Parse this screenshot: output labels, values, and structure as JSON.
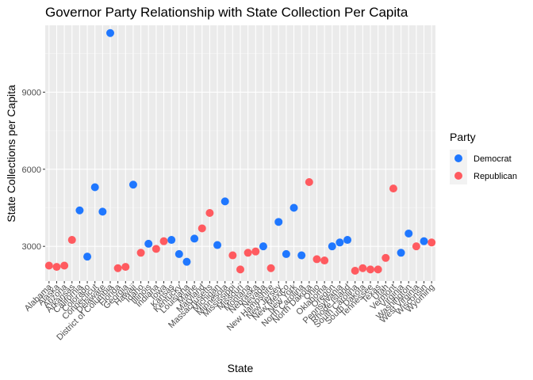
{
  "chart_data": {
    "type": "scatter",
    "title": "Governor Party Relationship with State Collection Per Capita",
    "xlabel": "State",
    "ylabel": "State Collections per Capita",
    "ylim": [
      1650,
      11600
    ],
    "yticks": [
      3000,
      6000,
      9000
    ],
    "grid": true,
    "legend": {
      "title": "Party",
      "position": "right",
      "entries": [
        {
          "name": "Democrat",
          "color": "#1F77FF"
        },
        {
          "name": "Republican",
          "color": "#FF5A5F"
        }
      ]
    },
    "categories": [
      "Alabama",
      "Alaska",
      "Arizona",
      "Arkansas",
      "California",
      "Colorado",
      "Connecticut",
      "Delaware",
      "District of Columbia",
      "Florida",
      "Georgia",
      "Hawaii",
      "Idaho",
      "Illinois",
      "Indiana",
      "Iowa",
      "Kansas",
      "Kentucky",
      "Louisiana",
      "Maine",
      "Maryland",
      "Massachusetts",
      "Michigan",
      "Minnesota",
      "Mississippi",
      "Missouri",
      "Montana",
      "Nebraska",
      "Nevada",
      "New Hampshire",
      "New Jersey",
      "New Mexico",
      "New York",
      "North Carolina",
      "North Dakota",
      "Ohio",
      "Oklahoma",
      "Oregon",
      "Pennsylvania",
      "Rhode Island",
      "South Carolina",
      "South Dakota",
      "Tennessee",
      "Texas",
      "Utah",
      "Vermont",
      "Virginia",
      "Washington",
      "West Virginia",
      "Wisconsin",
      "Wyoming"
    ],
    "points": [
      {
        "state": "Alabama",
        "value": 2250,
        "party": "Republican"
      },
      {
        "state": "Alaska",
        "value": 2200,
        "party": "Republican"
      },
      {
        "state": "Arizona",
        "value": 2250,
        "party": "Republican"
      },
      {
        "state": "Arkansas",
        "value": 3250,
        "party": "Republican"
      },
      {
        "state": "California",
        "value": 4400,
        "party": "Democrat"
      },
      {
        "state": "Colorado",
        "value": 2600,
        "party": "Democrat"
      },
      {
        "state": "Connecticut",
        "value": 5300,
        "party": "Democrat"
      },
      {
        "state": "Delaware",
        "value": 4350,
        "party": "Democrat"
      },
      {
        "state": "District of Columbia",
        "value": 11300,
        "party": "Democrat"
      },
      {
        "state": "Florida",
        "value": 2150,
        "party": "Republican"
      },
      {
        "state": "Georgia",
        "value": 2200,
        "party": "Republican"
      },
      {
        "state": "Hawaii",
        "value": 5400,
        "party": "Democrat"
      },
      {
        "state": "Idaho",
        "value": 2750,
        "party": "Republican"
      },
      {
        "state": "Illinois",
        "value": 3100,
        "party": "Democrat"
      },
      {
        "state": "Indiana",
        "value": 2900,
        "party": "Republican"
      },
      {
        "state": "Iowa",
        "value": 3200,
        "party": "Republican"
      },
      {
        "state": "Kansas",
        "value": 3250,
        "party": "Democrat"
      },
      {
        "state": "Kentucky",
        "value": 2700,
        "party": "Democrat"
      },
      {
        "state": "Louisiana",
        "value": 2400,
        "party": "Democrat"
      },
      {
        "state": "Maine",
        "value": 3300,
        "party": "Democrat"
      },
      {
        "state": "Maryland",
        "value": 3700,
        "party": "Republican"
      },
      {
        "state": "Massachusetts",
        "value": 4300,
        "party": "Republican"
      },
      {
        "state": "Michigan",
        "value": 3050,
        "party": "Democrat"
      },
      {
        "state": "Minnesota",
        "value": 4750,
        "party": "Democrat"
      },
      {
        "state": "Mississippi",
        "value": 2650,
        "party": "Republican"
      },
      {
        "state": "Missouri",
        "value": 2100,
        "party": "Republican"
      },
      {
        "state": "Montana",
        "value": 2750,
        "party": "Republican"
      },
      {
        "state": "Nebraska",
        "value": 2800,
        "party": "Republican"
      },
      {
        "state": "Nevada",
        "value": 3000,
        "party": "Democrat"
      },
      {
        "state": "New Hampshire",
        "value": 2150,
        "party": "Republican"
      },
      {
        "state": "New Jersey",
        "value": 3950,
        "party": "Democrat"
      },
      {
        "state": "New Mexico",
        "value": 2700,
        "party": "Democrat"
      },
      {
        "state": "New York",
        "value": 4500,
        "party": "Democrat"
      },
      {
        "state": "North Carolina",
        "value": 2650,
        "party": "Democrat"
      },
      {
        "state": "North Dakota",
        "value": 5500,
        "party": "Republican"
      },
      {
        "state": "Ohio",
        "value": 2500,
        "party": "Republican"
      },
      {
        "state": "Oklahoma",
        "value": 2450,
        "party": "Republican"
      },
      {
        "state": "Oregon",
        "value": 3000,
        "party": "Democrat"
      },
      {
        "state": "Pennsylvania",
        "value": 3150,
        "party": "Democrat"
      },
      {
        "state": "Rhode Island",
        "value": 3250,
        "party": "Democrat"
      },
      {
        "state": "South Carolina",
        "value": 2050,
        "party": "Republican"
      },
      {
        "state": "South Dakota",
        "value": 2150,
        "party": "Republican"
      },
      {
        "state": "Tennessee",
        "value": 2100,
        "party": "Republican"
      },
      {
        "state": "Texas",
        "value": 2100,
        "party": "Republican"
      },
      {
        "state": "Utah",
        "value": 2550,
        "party": "Republican"
      },
      {
        "state": "Vermont",
        "value": 5250,
        "party": "Republican"
      },
      {
        "state": "Virginia",
        "value": 2750,
        "party": "Democrat"
      },
      {
        "state": "Washington",
        "value": 3500,
        "party": "Democrat"
      },
      {
        "state": "West Virginia",
        "value": 3000,
        "party": "Republican"
      },
      {
        "state": "Wisconsin",
        "value": 3200,
        "party": "Democrat"
      },
      {
        "state": "Wyoming",
        "value": 3150,
        "party": "Republican"
      }
    ]
  }
}
